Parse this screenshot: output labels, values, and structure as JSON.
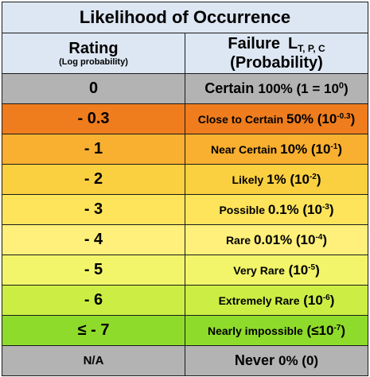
{
  "table": {
    "title": "Likelihood of Occurrence",
    "header": {
      "rating": "Rating",
      "rating_sub": "(Log probability)",
      "failure": "Failure",
      "failure_symbol": "L",
      "failure_subscript": "T, P, C",
      "failure_tail": "(Probability)"
    },
    "rows": [
      {
        "rating": "0",
        "label": "Certain",
        "percent": "100%",
        "pre": " (1 = 10",
        "exp": "0",
        "post": ")",
        "color": "#b3b3b3"
      },
      {
        "rating": "- 0.3",
        "label": "Close to Certain",
        "percent": "50%",
        "pre": " (10",
        "exp": "-0.3",
        "post": ")",
        "color": "#ef7d1e"
      },
      {
        "rating": "- 1",
        "label": "Near Certain",
        "percent": "10%",
        "pre": " (10",
        "exp": "-1",
        "post": ")",
        "color": "#f9b030"
      },
      {
        "rating": "- 2",
        "label": "Likely",
        "percent": "1%",
        "pre": " (10",
        "exp": "-2",
        "post": ")",
        "color": "#fbd040"
      },
      {
        "rating": "- 3",
        "label": "Possible",
        "percent": "0.1%",
        "pre": " (10",
        "exp": "-3",
        "post": ")",
        "color": "#fde45a"
      },
      {
        "rating": "- 4",
        "label": "Rare",
        "percent": "0.01%",
        "pre": " (10",
        "exp": "-4",
        "post": ")",
        "color": "#fef07a"
      },
      {
        "rating": "- 5",
        "label": "Very Rare",
        "percent": "",
        "pre": " (10",
        "exp": "-5",
        "post": ")",
        "color": "#f2f56a"
      },
      {
        "rating": "- 6",
        "label": "Extremely Rare",
        "percent": "",
        "pre": " (10",
        "exp": "-6",
        "post": ")",
        "color": "#ccee44"
      },
      {
        "rating": "≤ - 7",
        "label": "Nearly impossible",
        "percent": "",
        "pre": " (≤10",
        "exp": "-7",
        "post": ")",
        "color": "#8fdb2b"
      },
      {
        "rating": "N/A",
        "label": "Never",
        "percent": "0%",
        "pre": " (0)",
        "exp": "",
        "post": "",
        "color": "#b3b3b3"
      }
    ]
  }
}
